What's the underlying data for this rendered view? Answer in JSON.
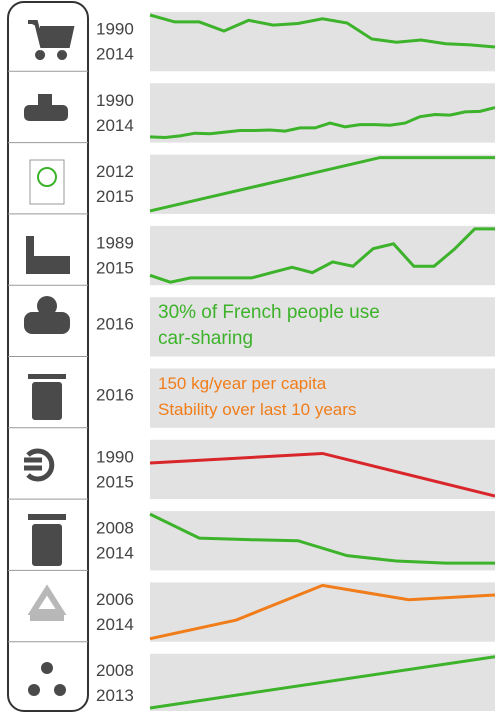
{
  "chart_data": [
    {
      "type": "line",
      "x_labels": [
        "1990",
        "2014"
      ],
      "color": "#3db22b",
      "ylim": [
        0,
        100
      ],
      "values": [
        100,
        87,
        87,
        70,
        90,
        81,
        84,
        93,
        85,
        55,
        49,
        53,
        46,
        44,
        40
      ]
    },
    {
      "type": "line",
      "x_labels": [
        "1990",
        "2014"
      ],
      "color": "#3db22b",
      "ylim": [
        0,
        100
      ],
      "values": [
        5,
        4,
        7,
        12,
        11,
        14,
        17,
        17,
        18,
        16,
        22,
        22,
        31,
        24,
        28,
        28,
        27,
        31,
        43,
        47,
        46,
        52,
        53,
        60
      ]
    },
    {
      "type": "line",
      "x_labels": [
        "2012",
        "2015"
      ],
      "color": "#3db22b",
      "ylim": [
        0,
        100
      ],
      "values": [
        0,
        25,
        50,
        75,
        100,
        100,
        100
      ]
    },
    {
      "type": "line",
      "x_labels": [
        "1989",
        "2015"
      ],
      "color": "#3db22b",
      "ylim": [
        0,
        100
      ],
      "values": [
        13,
        0,
        8,
        8,
        8,
        8,
        18,
        28,
        18,
        38,
        30,
        63,
        72,
        30,
        30,
        62,
        100,
        100
      ]
    },
    {
      "type": "text",
      "x_labels": [
        "2016"
      ],
      "color": "#3db22b",
      "lines": [
        "30% of French people use",
        "car-sharing"
      ]
    },
    {
      "type": "text",
      "x_labels": [
        "2016"
      ],
      "color": "#f07d1a",
      "lines": [
        "150 kg/year per capita",
        "Stability over last 10 years"
      ]
    },
    {
      "type": "line",
      "x_labels": [
        "1990",
        "2015"
      ],
      "color": "#d9262a",
      "ylim": [
        0,
        100
      ],
      "values": [
        62,
        80,
        0
      ]
    },
    {
      "type": "line",
      "x_labels": [
        "2008",
        "2014"
      ],
      "color": "#3db22b",
      "ylim": [
        0,
        100
      ],
      "values": [
        100,
        55,
        52,
        50,
        22,
        12,
        8,
        8
      ]
    },
    {
      "type": "line",
      "x_labels": [
        "2006",
        "2014"
      ],
      "color": "#f07d1a",
      "ylim": [
        0,
        100
      ],
      "values": [
        0,
        35,
        100,
        73,
        82
      ]
    },
    {
      "type": "line",
      "x_labels": [
        "2008",
        "2013"
      ],
      "color": "#3db22b",
      "ylim": [
        0,
        100
      ],
      "values": [
        0,
        100
      ]
    }
  ]
}
